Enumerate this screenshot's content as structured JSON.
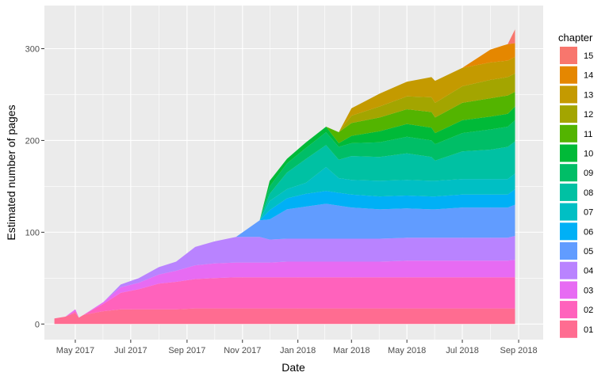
{
  "chart_data": {
    "type": "area",
    "stacked": true,
    "xlabel": "Date",
    "ylabel": "Estimated number of pages",
    "x_ticks": [
      "May 2017",
      "Jul 2017",
      "Sep 2017",
      "Nov 2017",
      "Jan 2018",
      "Mar 2018",
      "May 2018",
      "Jul 2018",
      "Sep 2018"
    ],
    "x_tick_dates": [
      "2017-05-01",
      "2017-07-01",
      "2017-09-01",
      "2017-11-01",
      "2018-01-01",
      "2018-03-01",
      "2018-05-01",
      "2018-07-01",
      "2018-09-01"
    ],
    "y_ticks": [
      0,
      100,
      200,
      300
    ],
    "xlim": [
      "2017-03-28",
      "2018-09-28"
    ],
    "ylim": [
      -17,
      347
    ],
    "grid": true,
    "legend": {
      "title": "chapter",
      "position": "right",
      "entries": [
        "15",
        "14",
        "13",
        "12",
        "11",
        "10",
        "09",
        "08",
        "07",
        "06",
        "05",
        "04",
        "03",
        "02",
        "01"
      ]
    },
    "colors": {
      "01": "#FF6C91",
      "02": "#FF62BC",
      "03": "#E76BF3",
      "04": "#B983FF",
      "05": "#619CFF",
      "06": "#00B0F6",
      "07": "#00BFC4",
      "08": "#00C1A3",
      "09": "#00BE67",
      "10": "#00BA38",
      "11": "#53B400",
      "12": "#A3A500",
      "13": "#C49A00",
      "14": "#E58700",
      "15": "#F8766D"
    },
    "dates": [
      "2017-04-08",
      "2017-04-20",
      "2017-05-01",
      "2017-05-05",
      "2017-05-10",
      "2017-06-01",
      "2017-06-20",
      "2017-07-10",
      "2017-08-01",
      "2017-08-20",
      "2017-09-10",
      "2017-10-01",
      "2017-10-25",
      "2017-11-20",
      "2017-12-01",
      "2017-12-20",
      "2018-01-10",
      "2018-02-01",
      "2018-02-15",
      "2018-03-01",
      "2018-04-01",
      "2018-05-01",
      "2018-05-28",
      "2018-06-01",
      "2018-07-01",
      "2018-08-01",
      "2018-08-20",
      "2018-08-28"
    ],
    "series": [
      {
        "name": "01",
        "values": [
          6,
          8,
          12,
          7,
          10,
          14,
          16,
          16,
          16,
          16,
          17,
          17,
          17,
          17,
          17,
          17,
          17,
          17,
          17,
          17,
          17,
          17,
          17,
          17,
          17,
          17,
          17,
          17
        ]
      },
      {
        "name": "02",
        "values": [
          0,
          0,
          2,
          0,
          0,
          8,
          18,
          22,
          28,
          30,
          32,
          33,
          34,
          34,
          34,
          34,
          34,
          34,
          34,
          34,
          34,
          34,
          34,
          34,
          34,
          34,
          34,
          34
        ]
      },
      {
        "name": "03",
        "values": [
          0,
          0,
          2,
          0,
          0,
          2,
          6,
          7,
          10,
          12,
          15,
          16,
          16,
          16,
          16,
          17,
          17,
          17,
          17,
          17,
          17,
          18,
          18,
          18,
          18,
          18,
          18,
          19
        ]
      },
      {
        "name": "04",
        "values": [
          0,
          0,
          0,
          0,
          0,
          0,
          3,
          5,
          8,
          10,
          20,
          24,
          28,
          28,
          25,
          25,
          25,
          25,
          25,
          25,
          25,
          25,
          25,
          25,
          25,
          25,
          25,
          26
        ]
      },
      {
        "name": "05",
        "values": [
          0,
          0,
          0,
          0,
          0,
          0,
          0,
          0,
          0,
          0,
          0,
          0,
          0,
          18,
          22,
          32,
          35,
          38,
          36,
          34,
          32,
          32,
          31,
          31,
          33,
          33,
          33,
          34
        ]
      },
      {
        "name": "06",
        "values": [
          0,
          0,
          0,
          0,
          0,
          0,
          0,
          0,
          0,
          0,
          0,
          0,
          0,
          0,
          10,
          12,
          14,
          14,
          14,
          14,
          14,
          14,
          14,
          14,
          14,
          14,
          14,
          17
        ]
      },
      {
        "name": "07",
        "values": [
          0,
          0,
          0,
          0,
          0,
          0,
          0,
          0,
          0,
          0,
          0,
          0,
          0,
          0,
          10,
          10,
          12,
          26,
          16,
          16,
          17,
          17,
          17,
          17,
          17,
          17,
          17,
          17
        ]
      },
      {
        "name": "08",
        "values": [
          0,
          0,
          0,
          0,
          0,
          0,
          0,
          0,
          0,
          0,
          0,
          0,
          0,
          0,
          8,
          18,
          26,
          24,
          20,
          26,
          26,
          29,
          26,
          22,
          30,
          32,
          35,
          35
        ]
      },
      {
        "name": "09",
        "values": [
          0,
          0,
          0,
          0,
          0,
          0,
          0,
          0,
          0,
          0,
          0,
          0,
          0,
          0,
          8,
          10,
          12,
          14,
          14,
          14,
          16,
          18,
          18,
          18,
          20,
          22,
          22,
          23
        ]
      },
      {
        "name": "10",
        "values": [
          0,
          0,
          0,
          0,
          0,
          0,
          0,
          0,
          0,
          0,
          0,
          0,
          0,
          0,
          6,
          5,
          6,
          6,
          4,
          8,
          12,
          14,
          14,
          12,
          14,
          14,
          14,
          15
        ]
      },
      {
        "name": "11",
        "values": [
          0,
          0,
          0,
          0,
          0,
          0,
          0,
          0,
          0,
          0,
          0,
          0,
          0,
          0,
          0,
          0,
          0,
          0,
          12,
          14,
          15,
          16,
          17,
          17,
          19,
          20,
          20,
          16
        ]
      },
      {
        "name": "12",
        "values": [
          0,
          0,
          0,
          0,
          0,
          0,
          0,
          0,
          0,
          0,
          0,
          0,
          0,
          0,
          0,
          0,
          0,
          0,
          0,
          8,
          12,
          14,
          16,
          16,
          18,
          20,
          20,
          20
        ]
      },
      {
        "name": "13",
        "values": [
          0,
          0,
          0,
          0,
          0,
          0,
          0,
          0,
          0,
          0,
          0,
          0,
          0,
          0,
          0,
          0,
          0,
          0,
          0,
          8,
          14,
          16,
          22,
          24,
          20,
          19,
          18,
          18
        ]
      },
      {
        "name": "14",
        "values": [
          0,
          0,
          0,
          0,
          0,
          0,
          0,
          0,
          0,
          0,
          0,
          0,
          0,
          0,
          0,
          0,
          0,
          0,
          0,
          0,
          0,
          0,
          0,
          0,
          0,
          14,
          18,
          15
        ]
      },
      {
        "name": "15",
        "values": [
          0,
          0,
          0,
          0,
          0,
          0,
          0,
          0,
          0,
          0,
          0,
          0,
          0,
          0,
          0,
          0,
          0,
          0,
          0,
          0,
          0,
          0,
          0,
          0,
          0,
          0,
          0,
          15
        ]
      }
    ]
  }
}
